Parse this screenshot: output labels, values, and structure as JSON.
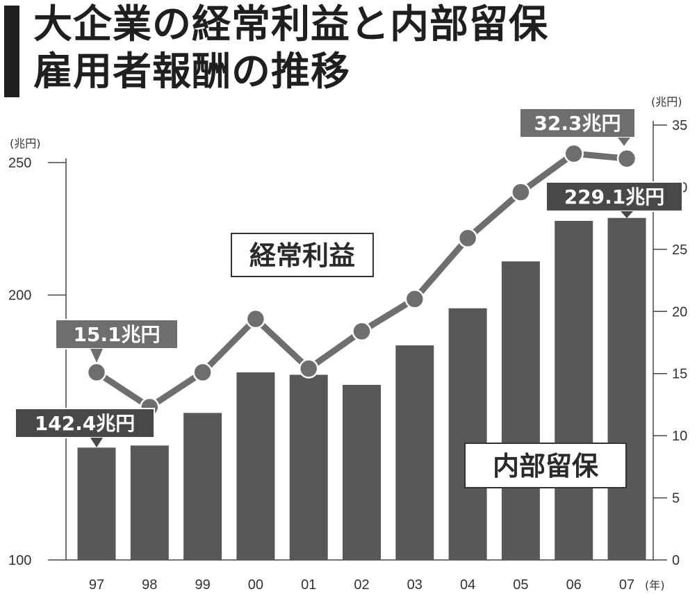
{
  "title": {
    "line1": "大企業の経常利益と内部留保",
    "line2": "雇用者報酬の推移"
  },
  "chart_data": {
    "type": "bar+line",
    "categories": [
      "97",
      "98",
      "99",
      "00",
      "01",
      "02",
      "03",
      "04",
      "05",
      "06",
      "07"
    ],
    "x_unit": "(年)",
    "left_axis": {
      "unit": "(兆円)",
      "min": 100,
      "max": 250,
      "ticks": [
        100,
        200,
        250
      ]
    },
    "right_axis": {
      "unit": "(兆円)",
      "min": 0,
      "max": 35,
      "ticks": [
        0,
        5,
        10,
        15,
        20,
        25,
        30,
        35
      ]
    },
    "series": [
      {
        "name": "内部留保",
        "type": "bar",
        "axis": "left",
        "values": [
          142.4,
          143.2,
          155.5,
          170.8,
          169.9,
          166.1,
          181.0,
          195.0,
          212.7,
          228.0,
          229.1
        ]
      },
      {
        "name": "経常利益",
        "type": "line",
        "axis": "right",
        "values": [
          15.1,
          12.3,
          15.1,
          19.4,
          15.4,
          18.4,
          21.0,
          25.9,
          29.6,
          32.7,
          32.3
        ]
      }
    ],
    "annotations": [
      {
        "text": "142.4兆円",
        "series": 0,
        "index": 0
      },
      {
        "text": "229.1兆円",
        "series": 0,
        "index": 10
      },
      {
        "text": "15.1兆円",
        "series": 1,
        "index": 0
      },
      {
        "text": "32.3兆円",
        "series": 1,
        "index": 10
      }
    ],
    "colors": {
      "bar": "#585858",
      "line": "#6e6e6e",
      "callout_dark": "#484848",
      "callout_light": "#6e6e6e",
      "axis": "#444444"
    }
  }
}
